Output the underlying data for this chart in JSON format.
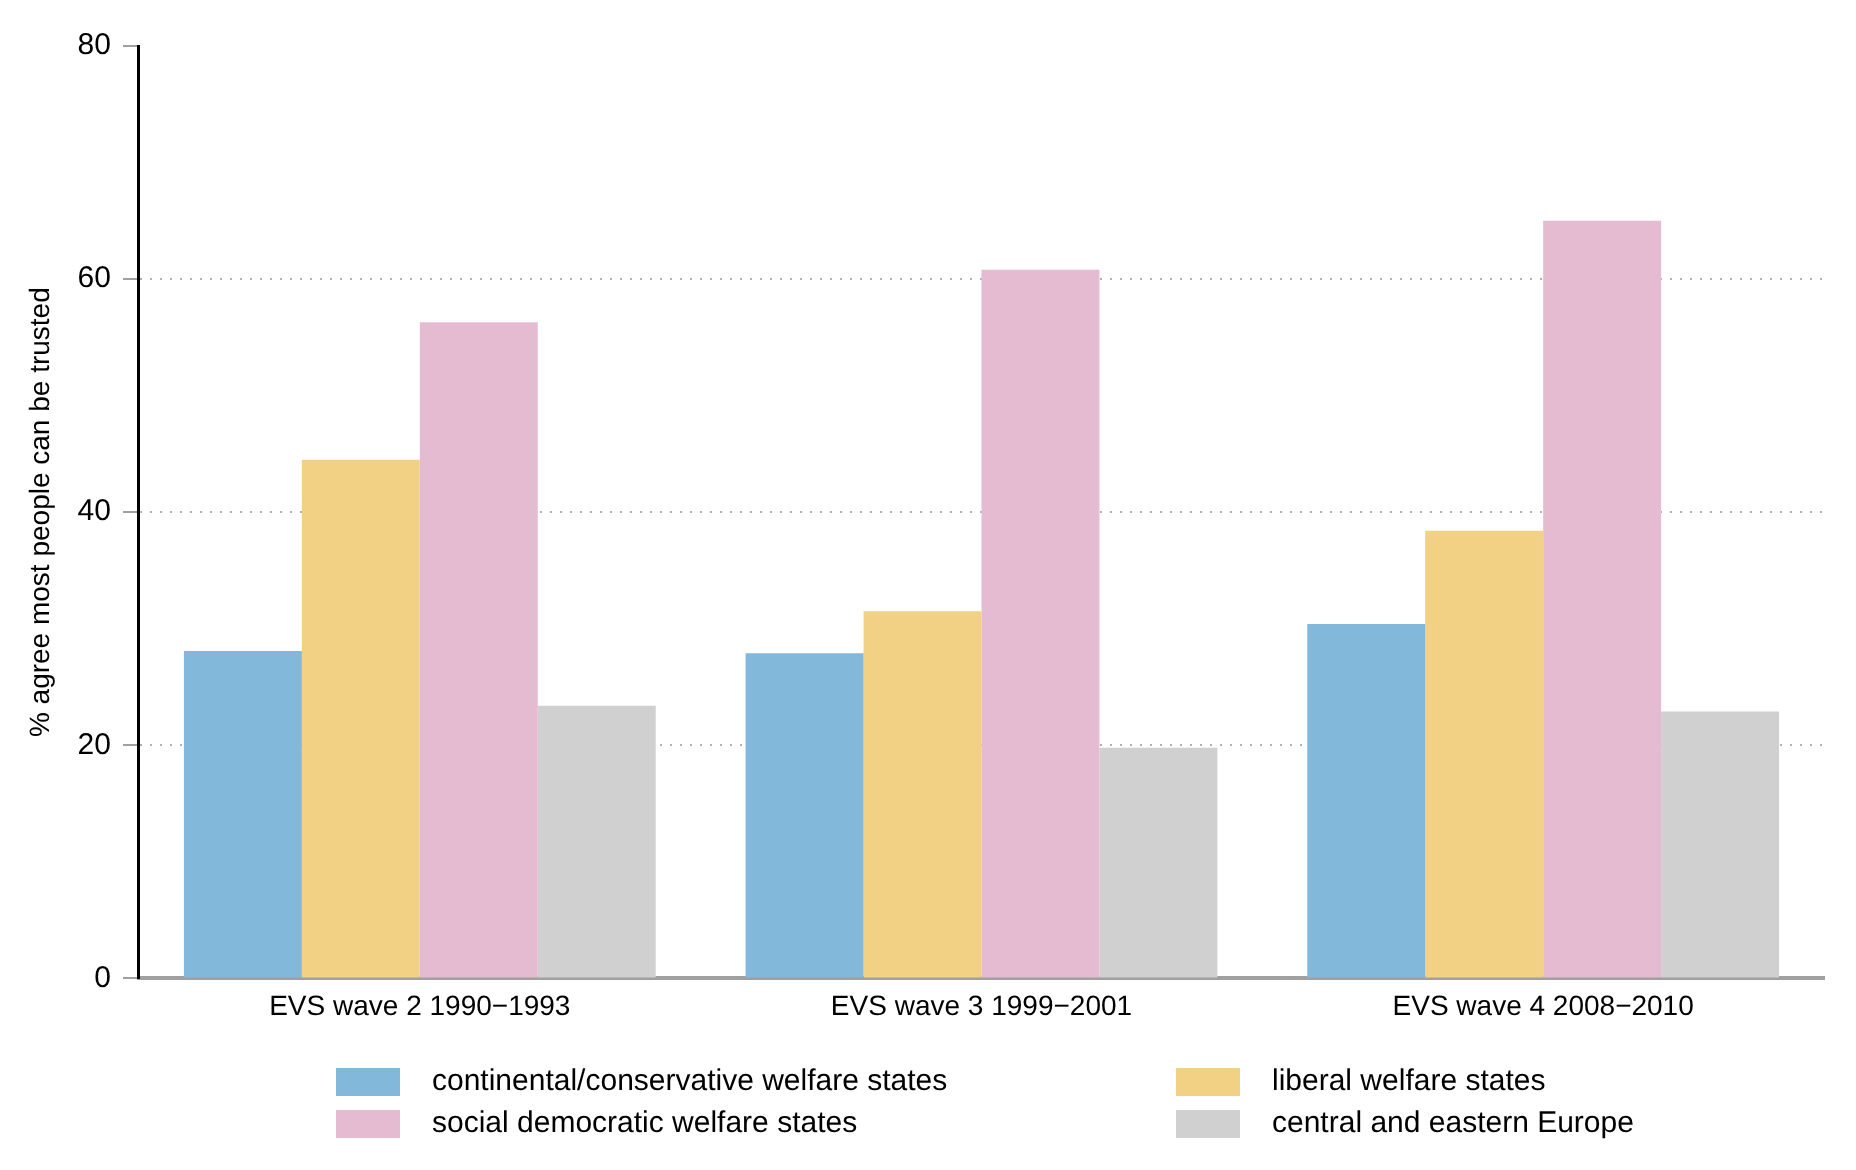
{
  "chart_data": {
    "type": "bar",
    "ylabel": "% agree most people can be trusted",
    "categories": [
      "EVS wave 2 1990−1993",
      "EVS wave 3 1999−2001",
      "EVS wave 4 2008−2010"
    ],
    "series": [
      {
        "name": "continental/conservative welfare states",
        "color": "#82b8d9",
        "values": [
          28.1,
          27.9,
          30.4
        ]
      },
      {
        "name": "liberal welfare states",
        "color": "#f2d184",
        "values": [
          44.5,
          31.5,
          38.4
        ]
      },
      {
        "name": "social democratic welfare states",
        "color": "#e5bbd2",
        "values": [
          56.3,
          60.8,
          65.0
        ]
      },
      {
        "name": "central and eastern Europe",
        "color": "#d0d0d0",
        "values": [
          23.4,
          19.8,
          22.9
        ]
      }
    ],
    "ylim": [
      0,
      80
    ],
    "yticks": [
      0,
      20,
      40,
      60,
      80
    ],
    "grid": "y",
    "legend": "bottom"
  }
}
